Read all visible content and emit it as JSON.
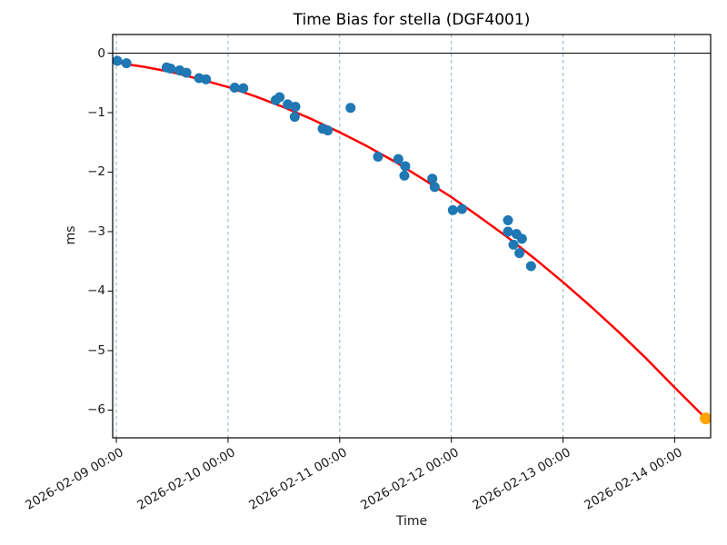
{
  "chart_data": {
    "type": "scatter",
    "title": "Time Bias for stella (DGF4001)",
    "xlabel": "Time",
    "ylabel": "ms",
    "x_axis": {
      "start": "2026-02-09 00:00",
      "tick_labels": [
        "2026-02-09 00:00",
        "2026-02-10 00:00",
        "2026-02-11 00:00",
        "2026-02-12 00:00",
        "2026-02-13 00:00",
        "2026-02-14 00:00"
      ],
      "lim_days": [
        -0.033,
        5.322
      ],
      "grid": "vertical-dashed"
    },
    "y_axis": {
      "tick_labels": [
        "0",
        "−1",
        "−2",
        "−3",
        "−4",
        "−5",
        "−6"
      ],
      "tick_values": [
        0,
        -1,
        -2,
        -3,
        -4,
        -5,
        -6
      ],
      "lim": [
        -6.466,
        0.313
      ],
      "zero_line": true
    },
    "series": [
      {
        "name": "measurements",
        "kind": "scatter",
        "color": "#1f77b4",
        "marker_radius": 5.5,
        "points": [
          [
            "2026-02-09 00:12",
            -0.13
          ],
          [
            "2026-02-09 02:10",
            -0.17
          ],
          [
            "2026-02-09 10:48",
            -0.24
          ],
          [
            "2026-02-09 11:40",
            -0.26
          ],
          [
            "2026-02-09 13:36",
            -0.29
          ],
          [
            "2026-02-09 15:03",
            -0.33
          ],
          [
            "2026-02-09 17:46",
            -0.42
          ],
          [
            "2026-02-09 19:16",
            -0.44
          ],
          [
            "2026-02-10 01:26",
            -0.58
          ],
          [
            "2026-02-10 03:17",
            -0.59
          ],
          [
            "2026-02-10 10:15",
            -0.79
          ],
          [
            "2026-02-10 11:05",
            -0.74
          ],
          [
            "2026-02-10 12:50",
            -0.86
          ],
          [
            "2026-02-10 14:20",
            -1.07
          ],
          [
            "2026-02-10 14:28",
            -0.9
          ],
          [
            "2026-02-10 20:20",
            -1.27
          ],
          [
            "2026-02-10 21:26",
            -1.3
          ],
          [
            "2026-02-11 02:20",
            -0.92
          ],
          [
            "2026-02-11 08:14",
            -1.74
          ],
          [
            "2026-02-11 12:36",
            -1.78
          ],
          [
            "2026-02-11 13:54",
            -2.06
          ],
          [
            "2026-02-11 14:05",
            -1.9
          ],
          [
            "2026-02-11 19:54",
            -2.11
          ],
          [
            "2026-02-11 20:25",
            -2.25
          ],
          [
            "2026-02-12 00:19",
            -2.64
          ],
          [
            "2026-02-12 02:17",
            -2.62
          ],
          [
            "2026-02-12 12:10",
            -2.81
          ],
          [
            "2026-02-12 12:10",
            -3.0
          ],
          [
            "2026-02-12 13:21",
            -3.22
          ],
          [
            "2026-02-12 14:00",
            -3.04
          ],
          [
            "2026-02-12 15:10",
            -3.12
          ],
          [
            "2026-02-12 14:38",
            -3.36
          ],
          [
            "2026-02-12 17:07",
            -3.58
          ]
        ]
      },
      {
        "name": "polynomial-fit",
        "kind": "line",
        "color": "#ff0000",
        "line_width": 2.5,
        "points_days": [
          [
            0.0,
            -0.16
          ],
          [
            0.25,
            -0.23
          ],
          [
            0.5,
            -0.32
          ],
          [
            0.75,
            -0.44
          ],
          [
            1.0,
            -0.57
          ],
          [
            1.25,
            -0.73
          ],
          [
            1.5,
            -0.91
          ],
          [
            1.75,
            -1.11
          ],
          [
            2.0,
            -1.33
          ],
          [
            2.25,
            -1.57
          ],
          [
            2.5,
            -1.83
          ],
          [
            2.75,
            -2.12
          ],
          [
            3.0,
            -2.42
          ],
          [
            3.25,
            -2.75
          ],
          [
            3.5,
            -3.09
          ],
          [
            3.75,
            -3.46
          ],
          [
            4.0,
            -3.85
          ],
          [
            4.25,
            -4.26
          ],
          [
            4.5,
            -4.69
          ],
          [
            4.75,
            -5.14
          ],
          [
            5.0,
            -5.62
          ],
          [
            5.278,
            -6.14
          ]
        ]
      },
      {
        "name": "prediction",
        "kind": "scatter",
        "color": "#ffa500",
        "marker_radius": 6.5,
        "points": [
          [
            "2026-02-14 06:40",
            -6.14
          ]
        ]
      }
    ],
    "colors": {
      "grid": "#7fa8c8",
      "frame": "#000000",
      "zero_line": "#000000",
      "text": "#1a1a1a"
    }
  }
}
